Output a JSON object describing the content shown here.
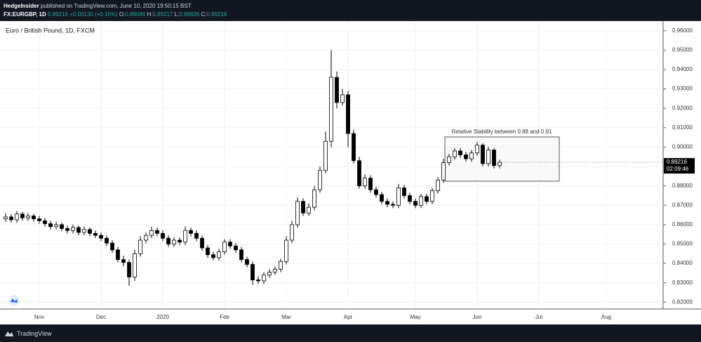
{
  "header": {
    "publisher": "HedgeInsider",
    "published": "published on TradingView.com, June 10, 2020 19:50:15 BST",
    "symbol": "FX:EURGBP, 1D",
    "price": "0.89216",
    "change": "+0.00130 (+0.15%)",
    "o_label": "O:",
    "o": "0.89086",
    "h_label": "H:",
    "h": "0.89217",
    "l_label": "L:",
    "l": "0.88826",
    "c_label": "C:",
    "c": "0.89216"
  },
  "footer": {
    "brand": "TradingView"
  },
  "chart_data": {
    "type": "candlestick",
    "title": "Euro / British Pound, 1D, FXCM",
    "annotation": "Relative Stability between 0.88 and 0.91",
    "last_price_label": "0.89216",
    "countdown": "02:09:46",
    "up_color": "#ffffff",
    "down_color": "#000000",
    "wick_color": "#000000",
    "grid": true,
    "ylim": [
      0.8165,
      0.965
    ],
    "yticks": [
      {
        "value": 0.82,
        "label": "0.82000"
      },
      {
        "value": 0.83,
        "label": "0.83000"
      },
      {
        "value": 0.84,
        "label": "0.84000"
      },
      {
        "value": 0.85,
        "label": "0.85000"
      },
      {
        "value": 0.86,
        "label": "0.86000"
      },
      {
        "value": 0.87,
        "label": "0.87000"
      },
      {
        "value": 0.88,
        "label": "0.88000"
      },
      {
        "value": 0.89,
        "label": "0.89000"
      },
      {
        "value": 0.9,
        "label": "0.90000"
      },
      {
        "value": 0.91,
        "label": "0.91000"
      },
      {
        "value": 0.92,
        "label": "0.92000"
      },
      {
        "value": 0.93,
        "label": "0.93000"
      },
      {
        "value": 0.94,
        "label": "0.94000"
      },
      {
        "value": 0.95,
        "label": "0.95000"
      },
      {
        "value": 0.96,
        "label": "0.96000"
      }
    ],
    "categories": [
      null,
      null,
      null,
      null,
      null,
      null,
      "Nov",
      null,
      null,
      null,
      null,
      null,
      null,
      null,
      null,
      null,
      null,
      "Dec",
      null,
      null,
      null,
      null,
      null,
      null,
      null,
      null,
      null,
      null,
      "2020",
      null,
      null,
      null,
      null,
      null,
      null,
      null,
      null,
      null,
      null,
      "Feb",
      null,
      null,
      null,
      null,
      null,
      null,
      null,
      null,
      null,
      null,
      "Mar",
      null,
      null,
      null,
      null,
      null,
      null,
      null,
      null,
      null,
      null,
      "Apr",
      null,
      null,
      null,
      null,
      null,
      null,
      null,
      null,
      null,
      null,
      null,
      "May",
      null,
      null,
      null,
      null,
      null,
      null,
      null,
      null,
      null,
      null,
      "Jun",
      null,
      null,
      null,
      null,
      null,
      null,
      null,
      null,
      null,
      null,
      "Jul",
      null,
      null,
      null,
      null,
      null,
      null,
      null,
      null,
      null,
      null,
      null,
      "Aug"
    ],
    "open": [
      0.863,
      0.864,
      0.8625,
      0.8655,
      0.8635,
      0.8645,
      0.863,
      0.862,
      0.8605,
      0.859,
      0.86,
      0.858,
      0.857,
      0.8585,
      0.856,
      0.8575,
      0.8555,
      0.8545,
      0.853,
      0.8505,
      0.847,
      0.842,
      0.8405,
      0.833,
      0.845,
      0.852,
      0.8545,
      0.857,
      0.8555,
      0.853,
      0.85,
      0.852,
      0.851,
      0.857,
      0.8555,
      0.853,
      0.848,
      0.8445,
      0.843,
      0.846,
      0.851,
      0.849,
      0.847,
      0.842,
      0.8395,
      0.8315,
      0.831,
      0.834,
      0.8355,
      0.837,
      0.841,
      0.852,
      0.86,
      0.872,
      0.866,
      0.869,
      0.878,
      0.888,
      0.903,
      0.936,
      0.923,
      0.927,
      0.907,
      0.893,
      0.88,
      0.884,
      0.878,
      0.8755,
      0.872,
      0.8705,
      0.87,
      0.879,
      0.875,
      0.872,
      0.87,
      0.8745,
      0.872,
      0.8775,
      0.883,
      0.892,
      0.895,
      0.898,
      0.896,
      0.894,
      0.897,
      0.901,
      0.8915,
      0.8985,
      0.8905,
      null,
      null,
      null,
      null,
      null,
      null,
      null,
      null,
      null,
      null,
      null,
      null,
      null,
      null,
      null,
      null,
      null,
      null,
      null
    ],
    "high": [
      0.866,
      0.8655,
      0.867,
      0.8665,
      0.866,
      0.8655,
      0.8645,
      0.8635,
      0.862,
      0.8615,
      0.861,
      0.8595,
      0.86,
      0.8595,
      0.859,
      0.8585,
      0.857,
      0.856,
      0.8545,
      0.852,
      0.8485,
      0.844,
      0.842,
      0.847,
      0.854,
      0.856,
      0.859,
      0.8585,
      0.857,
      0.8545,
      0.8535,
      0.8535,
      0.859,
      0.8585,
      0.857,
      0.8545,
      0.8495,
      0.846,
      0.8475,
      0.8525,
      0.8525,
      0.8505,
      0.8485,
      0.8435,
      0.841,
      0.8335,
      0.8355,
      0.837,
      0.8385,
      0.8425,
      0.854,
      0.862,
      0.874,
      0.8735,
      0.871,
      0.88,
      0.89,
      0.908,
      0.95,
      0.939,
      0.93,
      0.929,
      0.909,
      0.895,
      0.886,
      0.8855,
      0.8795,
      0.877,
      0.8735,
      0.872,
      0.881,
      0.8805,
      0.8765,
      0.8735,
      0.876,
      0.876,
      0.879,
      0.8845,
      0.894,
      0.8965,
      0.8995,
      0.8995,
      0.8975,
      0.8985,
      0.9025,
      0.902,
      0.9,
      0.8995,
      0.8935,
      null,
      null,
      null,
      null,
      null,
      null,
      null,
      null,
      null,
      null,
      null,
      null,
      null,
      null,
      null,
      null,
      null,
      null,
      null
    ],
    "low": [
      0.8615,
      0.861,
      0.861,
      0.862,
      0.862,
      0.8615,
      0.8605,
      0.859,
      0.8575,
      0.8575,
      0.8565,
      0.8555,
      0.8555,
      0.8545,
      0.8545,
      0.854,
      0.853,
      0.8515,
      0.849,
      0.8455,
      0.8405,
      0.8385,
      0.8285,
      0.831,
      0.8435,
      0.8505,
      0.853,
      0.854,
      0.8515,
      0.8485,
      0.8485,
      0.8495,
      0.8495,
      0.854,
      0.8515,
      0.8465,
      0.843,
      0.8415,
      0.8415,
      0.8445,
      0.8475,
      0.8455,
      0.8405,
      0.838,
      0.829,
      0.8295,
      0.8295,
      0.8325,
      0.834,
      0.8355,
      0.8395,
      0.8505,
      0.8585,
      0.8645,
      0.8645,
      0.8675,
      0.8765,
      0.8865,
      0.9,
      0.92,
      0.9215,
      0.9,
      0.8915,
      0.8785,
      0.8785,
      0.8765,
      0.874,
      0.8705,
      0.869,
      0.8685,
      0.8685,
      0.8735,
      0.8705,
      0.8685,
      0.8685,
      0.8705,
      0.8705,
      0.876,
      0.8815,
      0.8905,
      0.8935,
      0.8945,
      0.8925,
      0.8925,
      0.8955,
      0.89,
      0.89,
      0.889,
      0.889,
      null,
      null,
      null,
      null,
      null,
      null,
      null,
      null,
      null,
      null,
      null,
      null,
      null,
      null,
      null,
      null,
      null,
      null,
      null
    ],
    "close": [
      0.864,
      0.8625,
      0.8655,
      0.8635,
      0.8645,
      0.863,
      0.862,
      0.8605,
      0.859,
      0.86,
      0.858,
      0.857,
      0.8585,
      0.856,
      0.8575,
      0.8555,
      0.8545,
      0.853,
      0.8505,
      0.847,
      0.842,
      0.8405,
      0.833,
      0.845,
      0.852,
      0.8545,
      0.857,
      0.8555,
      0.853,
      0.85,
      0.852,
      0.851,
      0.857,
      0.8555,
      0.853,
      0.848,
      0.8445,
      0.843,
      0.846,
      0.851,
      0.849,
      0.847,
      0.842,
      0.8395,
      0.8315,
      0.831,
      0.834,
      0.8355,
      0.837,
      0.841,
      0.852,
      0.86,
      0.872,
      0.866,
      0.869,
      0.878,
      0.888,
      0.903,
      0.936,
      0.923,
      0.927,
      0.907,
      0.893,
      0.88,
      0.884,
      0.878,
      0.8755,
      0.872,
      0.8705,
      0.87,
      0.879,
      0.875,
      0.872,
      0.87,
      0.8745,
      0.872,
      0.8775,
      0.883,
      0.892,
      0.895,
      0.898,
      0.896,
      0.894,
      0.897,
      0.901,
      0.8915,
      0.8985,
      0.8905,
      0.89216,
      null,
      null,
      null,
      null,
      null,
      null,
      null,
      null,
      null,
      null,
      null,
      null,
      null,
      null,
      null,
      null,
      null,
      null,
      null
    ]
  }
}
